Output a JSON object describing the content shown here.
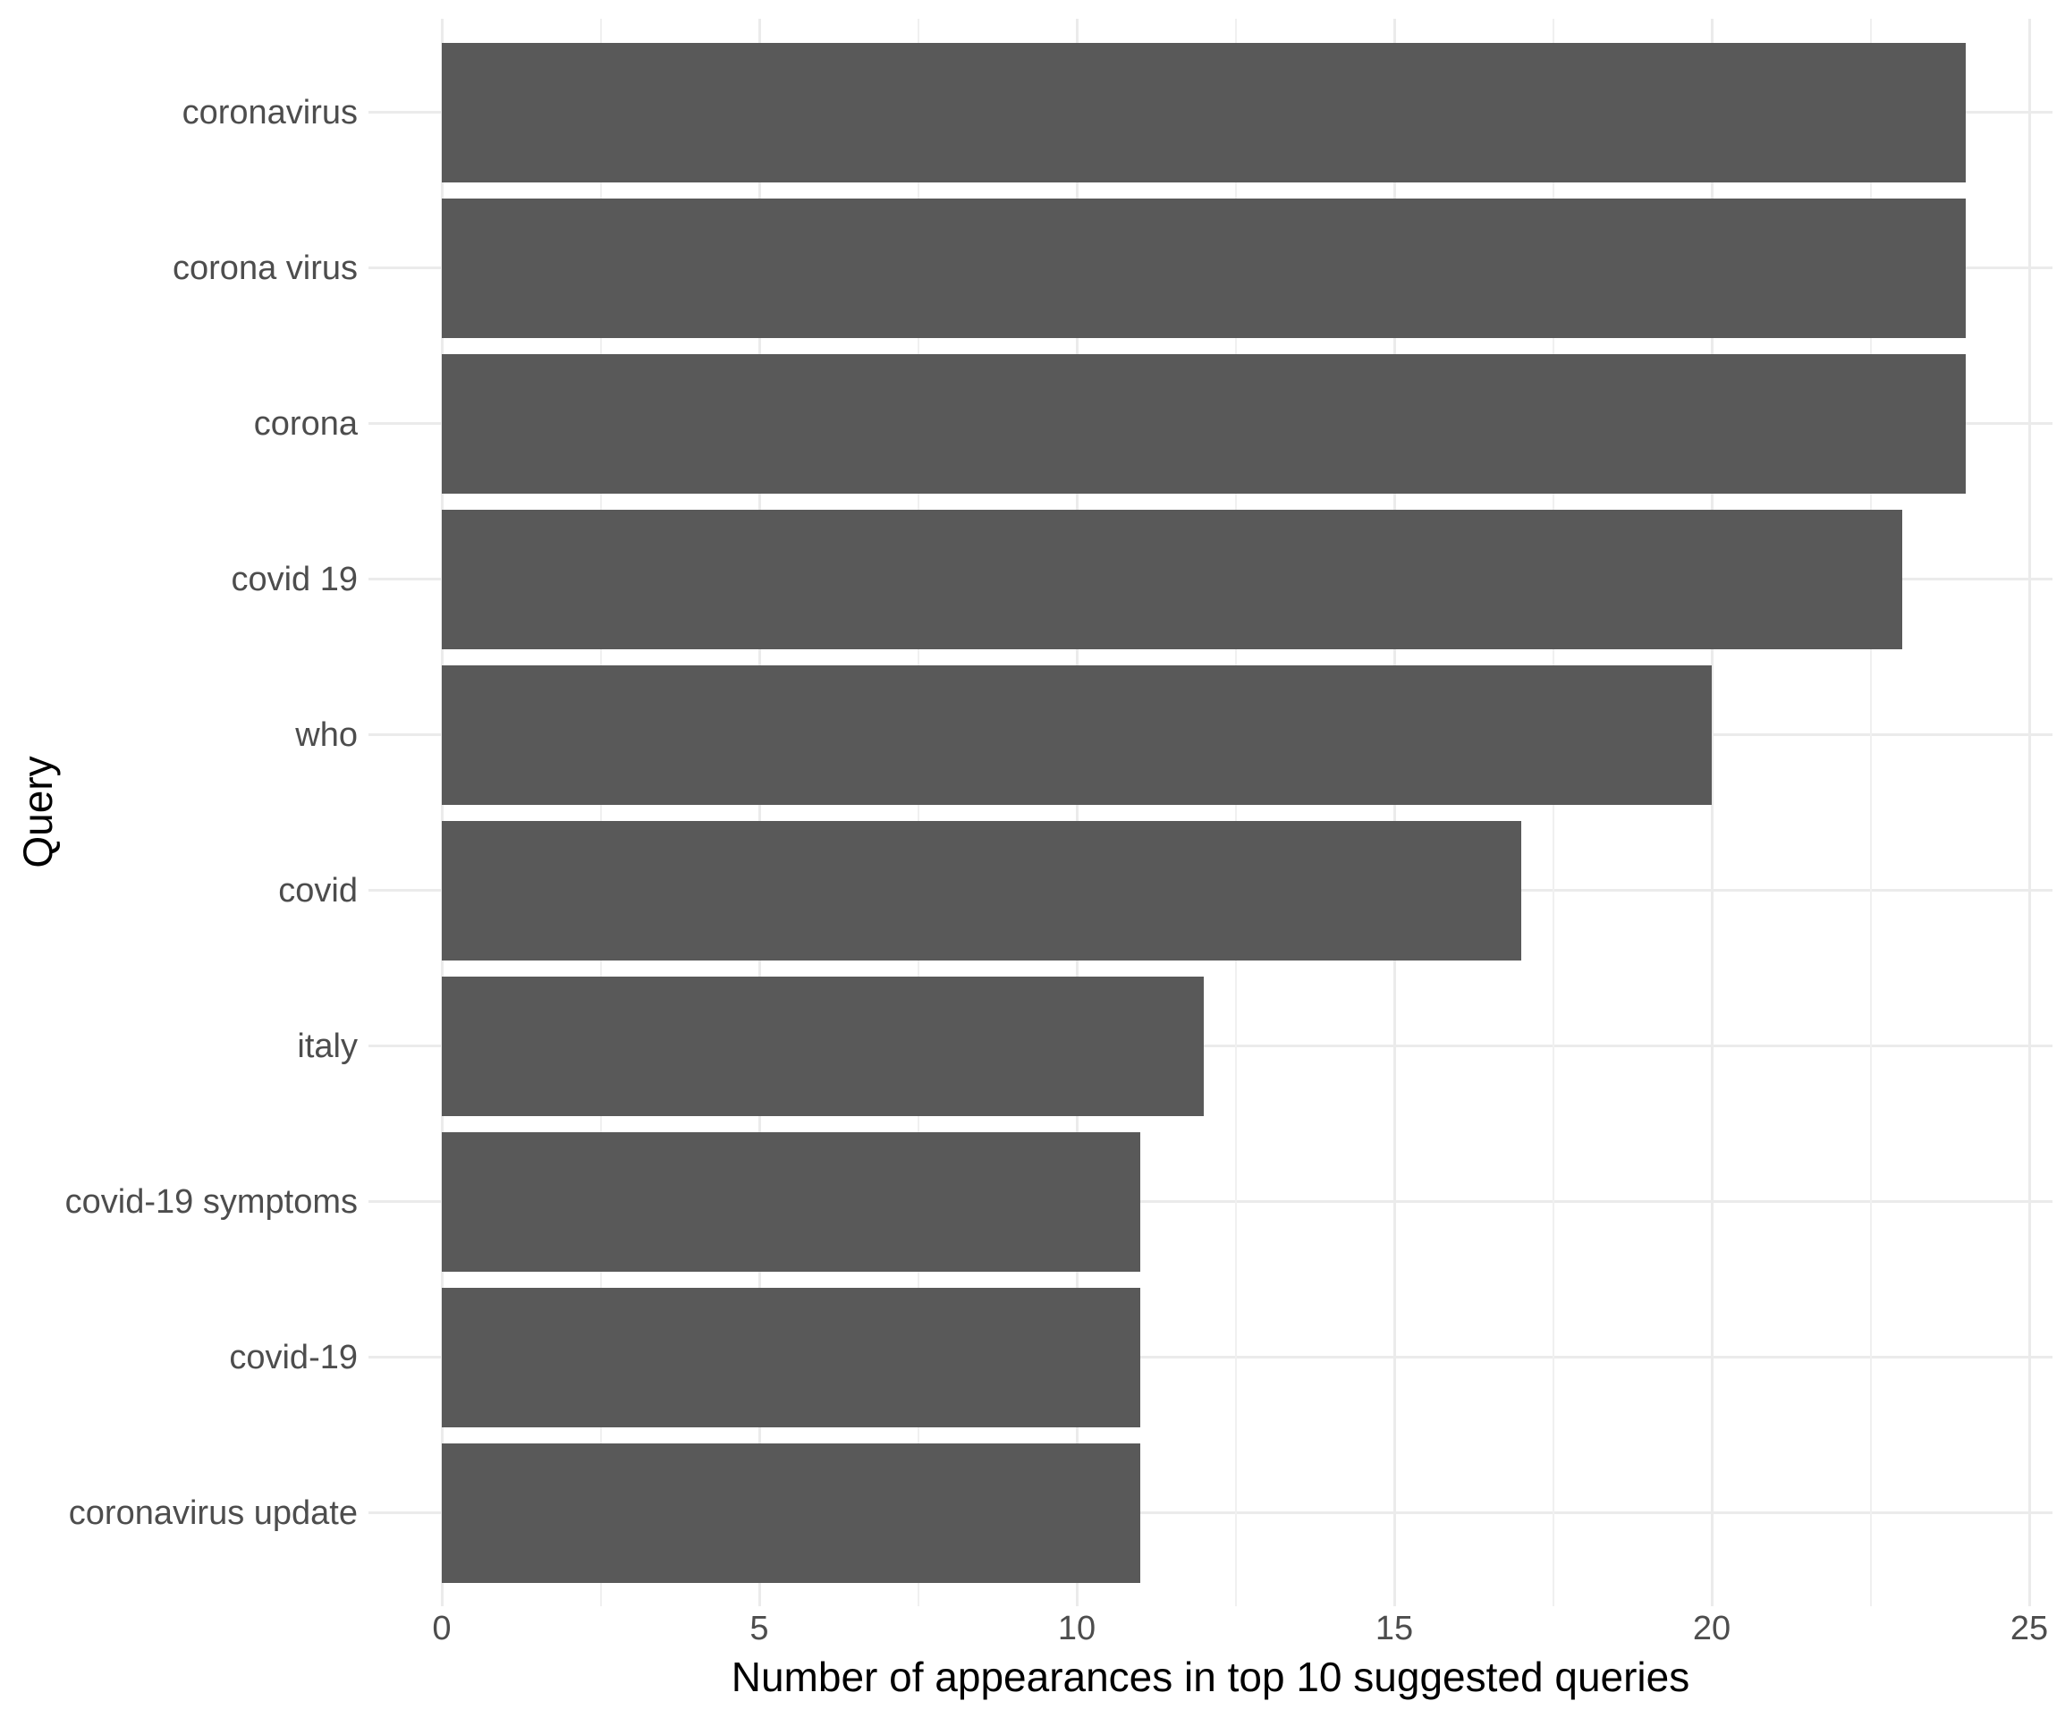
{
  "chart_data": {
    "type": "bar",
    "orientation": "horizontal",
    "title": "",
    "xlabel": "Number of appearances in top 10 suggested queries",
    "ylabel": "Query",
    "categories": [
      "coronavirus",
      "corona virus",
      "corona",
      "covid 19",
      "who",
      "covid",
      "italy",
      "covid-19 symptoms",
      "covid-19",
      "coronavirus update"
    ],
    "values": [
      24,
      24,
      24,
      23,
      20,
      17,
      12,
      11,
      11,
      11
    ],
    "x_ticks": [
      0,
      5,
      10,
      15,
      20,
      25
    ],
    "x_minor_gridlines": [
      2.5,
      7.5,
      12.5,
      17.5,
      22.5
    ],
    "xlim": [
      0,
      25
    ],
    "grid": "major and minor vertical, major horizontal per category",
    "legend": "none",
    "colors": {
      "bar": "#595959",
      "axis_text": "#4d4d4d",
      "axis_title": "#000000",
      "grid_major": "#ebebeb",
      "grid_minor": "#f0f0f0",
      "background": "#ffffff"
    }
  }
}
